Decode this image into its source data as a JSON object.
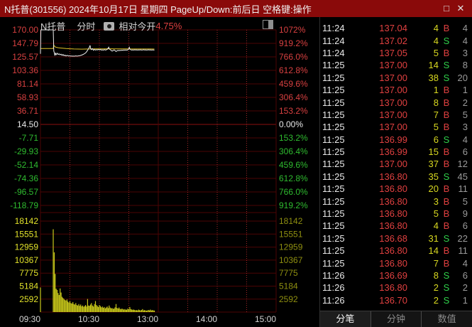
{
  "window": {
    "title": "N托普(301556) 2024年10月17日 星期四 PageUp/Down:前后日 空格键:操作",
    "maximize_icon": "□",
    "close_icon": "✕"
  },
  "chart_header": {
    "stock_name": "N托普",
    "period": "分时",
    "relative_label": "相对今开",
    "relative_value": "4.75%"
  },
  "chart_data": {
    "type": "line",
    "title": "N托普 分时",
    "x_labels": [
      "09:30",
      "10:30",
      "13:00",
      "14:00",
      "15:00"
    ],
    "session_minutes": 240,
    "price_axis_labels": [
      "170.00",
      "147.79",
      "125.57",
      "103.36",
      "81.14",
      "58.93",
      "36.71",
      "14.50",
      "-7.71",
      "-29.93",
      "-52.14",
      "-74.36",
      "-96.57",
      "-118.79"
    ],
    "pct_axis_labels": [
      "1072%",
      "919.2%",
      "766.0%",
      "612.8%",
      "459.6%",
      "306.4%",
      "153.2%",
      "0.00%",
      "153.2%",
      "306.4%",
      "459.6%",
      "612.8%",
      "766.0%",
      "919.2%"
    ],
    "volume_axis_labels": [
      "18142",
      "15551",
      "12959",
      "10367",
      "7775",
      "5184",
      "2592"
    ],
    "price_axis_top": 170.0,
    "price_axis_step": 22.2143,
    "volume_axis_step": 2592,
    "series": [
      {
        "name": "price",
        "points": [
          [
            0,
            130.5
          ],
          [
            0.4,
            170
          ],
          [
            13,
            170
          ],
          [
            13.6,
            135
          ],
          [
            14,
            133
          ],
          [
            14.6,
            128.5
          ],
          [
            15.3,
            131.5
          ],
          [
            16,
            129
          ],
          [
            17,
            131.5
          ],
          [
            18,
            129.5
          ],
          [
            19,
            130.5
          ],
          [
            20,
            129
          ],
          [
            21,
            130
          ],
          [
            22,
            128
          ],
          [
            23,
            129.5
          ],
          [
            24,
            127.5
          ],
          [
            25,
            128.5
          ],
          [
            26,
            127
          ],
          [
            27,
            128
          ],
          [
            28,
            127.5
          ],
          [
            29,
            126.8
          ],
          [
            30,
            127.5
          ],
          [
            31,
            126.6
          ],
          [
            32,
            127.2
          ],
          [
            33,
            126.5
          ],
          [
            34,
            127
          ],
          [
            35,
            126.6
          ],
          [
            36,
            127.3
          ],
          [
            37,
            126.7
          ],
          [
            38,
            127
          ],
          [
            40,
            127.5
          ],
          [
            42,
            128.5
          ],
          [
            44,
            130
          ],
          [
            46,
            132
          ],
          [
            47,
            134
          ],
          [
            48,
            136.5
          ],
          [
            49,
            139
          ],
          [
            50,
            142
          ],
          [
            50.5,
            144.5
          ],
          [
            51,
            140
          ],
          [
            52,
            137.5
          ],
          [
            53,
            139
          ],
          [
            54,
            136.5
          ],
          [
            55,
            138
          ],
          [
            56,
            136.8
          ],
          [
            57,
            137.5
          ],
          [
            58,
            137
          ],
          [
            59,
            138
          ],
          [
            60,
            137
          ],
          [
            61,
            137.8
          ],
          [
            62,
            136.8
          ],
          [
            63,
            137.3
          ],
          [
            64,
            136.6
          ],
          [
            65,
            137.6
          ],
          [
            66,
            136.9
          ],
          [
            67,
            137.2
          ],
          [
            68,
            138
          ],
          [
            69,
            140
          ],
          [
            69.5,
            141.5
          ],
          [
            70,
            139
          ],
          [
            71,
            137.5
          ],
          [
            72,
            136.2
          ],
          [
            73,
            135
          ],
          [
            74,
            136
          ],
          [
            75,
            137
          ],
          [
            76,
            136
          ],
          [
            77,
            134.3
          ],
          [
            78,
            135.5
          ],
          [
            79,
            136.3
          ],
          [
            80,
            135.8
          ],
          [
            81,
            136.5
          ],
          [
            82,
            136
          ],
          [
            83,
            136.8
          ],
          [
            84,
            136.2
          ],
          [
            85,
            137
          ],
          [
            86,
            136.5
          ],
          [
            87,
            137
          ],
          [
            88,
            136.6
          ],
          [
            89,
            137.2
          ],
          [
            90,
            139
          ],
          [
            90.5,
            141.2
          ],
          [
            91,
            138.5
          ],
          [
            92,
            137.2
          ],
          [
            93,
            136.8
          ],
          [
            94,
            137.1
          ],
          [
            95,
            136.8
          ],
          [
            96,
            137.3
          ],
          [
            97,
            136.9
          ],
          [
            98,
            137.2
          ],
          [
            99,
            136.8
          ],
          [
            100,
            137.1
          ],
          [
            101,
            136.9
          ],
          [
            102,
            137.3
          ],
          [
            103,
            136.8
          ],
          [
            104,
            137
          ],
          [
            105,
            137.4
          ],
          [
            106,
            136.9
          ],
          [
            107,
            137.2
          ],
          [
            108,
            136.8
          ],
          [
            109,
            137
          ],
          [
            110,
            137.3
          ],
          [
            111,
            136.9
          ],
          [
            112,
            137.1
          ],
          [
            113,
            136.8
          ],
          [
            114,
            137.04
          ],
          [
            115,
            137
          ],
          [
            116,
            136.7
          ]
        ]
      },
      {
        "name": "average",
        "points": [
          [
            0,
            139.3
          ],
          [
            13,
            139.3
          ],
          [
            13.5,
            145.5
          ],
          [
            14,
            143.5
          ],
          [
            15,
            142
          ],
          [
            16,
            141.3
          ],
          [
            18,
            140.6
          ],
          [
            20,
            140.2
          ],
          [
            23,
            139.7
          ],
          [
            26,
            139.3
          ],
          [
            30,
            138.9
          ],
          [
            34,
            138.6
          ],
          [
            38,
            138.4
          ],
          [
            42,
            138.3
          ],
          [
            46,
            138.4
          ],
          [
            50,
            138.6
          ],
          [
            54,
            138.7
          ],
          [
            58,
            138.8
          ],
          [
            64,
            138.8
          ],
          [
            70,
            138.9
          ],
          [
            76,
            138.8
          ],
          [
            82,
            138.7
          ],
          [
            88,
            138.7
          ],
          [
            94,
            138.6
          ],
          [
            100,
            138.6
          ],
          [
            106,
            138.5
          ],
          [
            112,
            138.5
          ],
          [
            116,
            138.4
          ]
        ]
      }
    ],
    "volume_bars": [
      4900,
      0,
      0,
      0,
      0,
      0,
      0,
      0,
      0,
      0,
      0,
      0,
      0,
      16500,
      11900,
      7600,
      4650,
      4400,
      3800,
      3400,
      4700,
      3900,
      3050,
      2800,
      2600,
      2400,
      2300,
      2500,
      2100,
      1900,
      2200,
      1800,
      1700,
      2000,
      1600,
      1500,
      1800,
      1400,
      1300,
      1600,
      1250,
      1500,
      1150,
      1300,
      1050,
      1200,
      1400,
      1100,
      2600,
      1300,
      1250,
      1500,
      1800,
      1300,
      1100,
      1600,
      2200,
      1400,
      1200,
      1000,
      1400,
      1200,
      950,
      1100,
      850,
      1000,
      750,
      900,
      1100,
      800,
      1300,
      900,
      750,
      800,
      650,
      700,
      950,
      1600,
      850,
      700,
      900,
      650,
      550,
      700,
      600,
      500,
      600,
      450,
      500,
      700,
      550,
      1000,
      600,
      500,
      450,
      500,
      420,
      350,
      400,
      330,
      500,
      400,
      330,
      420,
      600,
      330,
      400,
      330,
      280,
      320,
      420,
      330,
      500,
      330,
      400,
      330,
      300
    ]
  },
  "trades": {
    "rows": [
      [
        "11:24",
        "137.04",
        "4",
        "B",
        "4"
      ],
      [
        "11:24",
        "137.02",
        "4",
        "S",
        "4"
      ],
      [
        "11:24",
        "137.05",
        "5",
        "B",
        "3"
      ],
      [
        "11:25",
        "137.00",
        "14",
        "S",
        "8"
      ],
      [
        "11:25",
        "137.00",
        "38",
        "S",
        "20"
      ],
      [
        "11:25",
        "137.00",
        "1",
        "B",
        "1"
      ],
      [
        "11:25",
        "137.00",
        "8",
        "B",
        "2"
      ],
      [
        "11:25",
        "137.00",
        "7",
        "B",
        "5"
      ],
      [
        "11:25",
        "137.00",
        "5",
        "B",
        "3"
      ],
      [
        "11:25",
        "136.99",
        "6",
        "S",
        "4"
      ],
      [
        "11:25",
        "136.99",
        "15",
        "B",
        "6"
      ],
      [
        "11:25",
        "137.00",
        "37",
        "B",
        "12"
      ],
      [
        "11:25",
        "136.80",
        "35",
        "S",
        "45"
      ],
      [
        "11:25",
        "136.80",
        "20",
        "B",
        "11"
      ],
      [
        "11:25",
        "136.80",
        "3",
        "B",
        "5"
      ],
      [
        "11:25",
        "136.80",
        "5",
        "B",
        "9"
      ],
      [
        "11:25",
        "136.80",
        "4",
        "B",
        "6"
      ],
      [
        "11:25",
        "136.68",
        "31",
        "S",
        "22"
      ],
      [
        "11:25",
        "136.80",
        "14",
        "B",
        "11"
      ],
      [
        "11:25",
        "136.80",
        "7",
        "B",
        "4"
      ],
      [
        "11:26",
        "136.69",
        "8",
        "S",
        "6"
      ],
      [
        "11:26",
        "136.80",
        "2",
        "S",
        "2"
      ],
      [
        "11:26",
        "136.70",
        "2",
        "S",
        "1"
      ]
    ]
  },
  "footer_tabs": [
    {
      "label": "分笔",
      "active": true
    },
    {
      "label": "分钟",
      "active": false
    },
    {
      "label": "数值",
      "active": false
    }
  ],
  "colors": {
    "titlebar_bg": "#8a0a0a",
    "grid": "#4c0404",
    "grid_bright": "#8d1010",
    "grid_dot": "#a12626",
    "price_line": "#eeeeee",
    "avg_line": "#e2c428",
    "volume_bar": "#c9c91a",
    "axis_red": "#d84040",
    "axis_green": "#2fbb2f",
    "axis_white": "#e8e8e8",
    "axis_yellow": "#e3e32a",
    "axis_olive": "#8f8f10",
    "xaxis_label": "#d4d4d4"
  }
}
